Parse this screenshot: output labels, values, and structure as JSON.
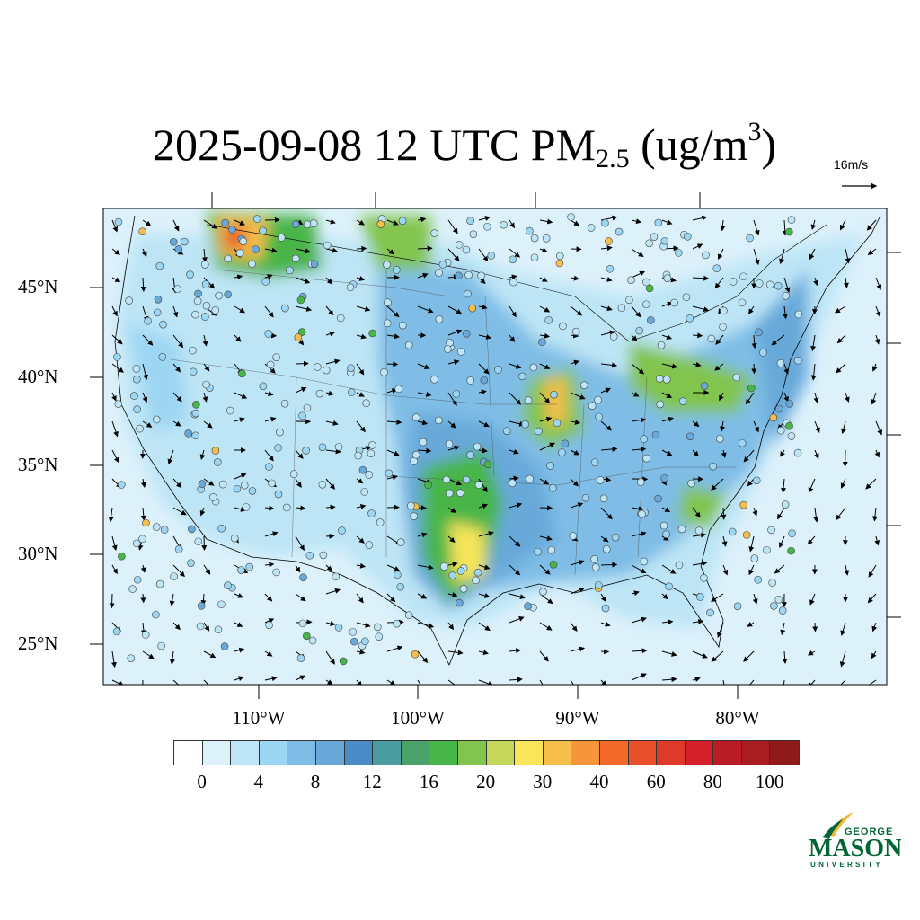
{
  "title": {
    "main": "2025-09-08 12 UTC PM",
    "sub": "2.5",
    "units_pre": " (ug/m",
    "sup": "3",
    "units_post": ")"
  },
  "wind_vector": {
    "reference_label": "16m/s",
    "icon": "arrow-right-icon"
  },
  "map": {
    "region": "Contiguous United States",
    "variable": "PM2.5",
    "background_color": "#ddf1fb",
    "lat_labels": [
      "45°N",
      "40°N",
      "35°N",
      "30°N",
      "25°N"
    ],
    "lon_labels": [
      "110°W",
      "100°W",
      "90°W",
      "80°W"
    ]
  },
  "colorbar": {
    "colors": [
      "#ffffff",
      "#ddf1fb",
      "#bde5f6",
      "#9dd6f3",
      "#7fbde6",
      "#68a9da",
      "#4a8cc8",
      "#4a9ca0",
      "#4aa26a",
      "#48b549",
      "#82c44e",
      "#c5d75a",
      "#f8e55a",
      "#f8be4b",
      "#f7953a",
      "#f46a2a",
      "#e8502c",
      "#de3a2a",
      "#d42028",
      "#b91c24",
      "#a81c22",
      "#8e1a1c"
    ],
    "labels": [
      "0",
      "4",
      "8",
      "12",
      "16",
      "20",
      "30",
      "40",
      "60",
      "80",
      "100"
    ]
  },
  "logo": {
    "line1": "GEORGE",
    "line2": "MASON",
    "line3": "UNIVERSITY",
    "green": "#006633",
    "gold": "#f2b632"
  }
}
